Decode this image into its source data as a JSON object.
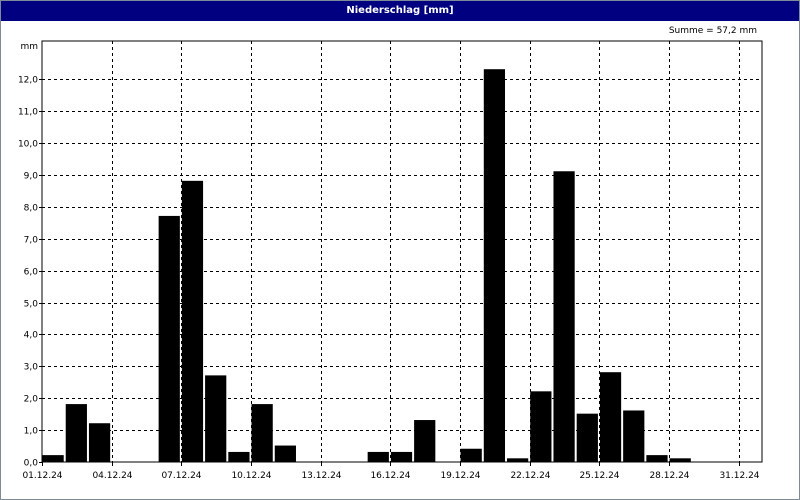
{
  "window_title": "Niederschlag [mm]",
  "summary": "Summe = 57,2 mm",
  "chart_data": {
    "type": "bar",
    "title": "Niederschlag [mm]",
    "ylabel": "mm",
    "xlabel": "",
    "ylim": [
      0,
      13.2
    ],
    "yticks": [
      "0,0",
      "1,0",
      "2,0",
      "3,0",
      "4,0",
      "5,0",
      "6,0",
      "7,0",
      "8,0",
      "9,0",
      "10,0",
      "11,0",
      "12,0"
    ],
    "xticks": [
      "01.12.24",
      "04.12.24",
      "07.12.24",
      "10.12.24",
      "13.12.24",
      "16.12.24",
      "19.12.24",
      "22.12.24",
      "25.12.24",
      "28.12.24",
      "31.12.24"
    ],
    "grid": true,
    "bar_color": "#000000",
    "categories": [
      "01.12.24",
      "02.12.24",
      "03.12.24",
      "04.12.24",
      "05.12.24",
      "06.12.24",
      "07.12.24",
      "08.12.24",
      "09.12.24",
      "10.12.24",
      "11.12.24",
      "12.12.24",
      "13.12.24",
      "14.12.24",
      "15.12.24",
      "16.12.24",
      "17.12.24",
      "18.12.24",
      "19.12.24",
      "20.12.24",
      "21.12.24",
      "22.12.24",
      "23.12.24",
      "24.12.24",
      "25.12.24",
      "26.12.24",
      "27.12.24",
      "28.12.24",
      "29.12.24",
      "30.12.24",
      "31.12.24"
    ],
    "values": [
      0.2,
      1.8,
      1.2,
      0,
      0,
      7.7,
      8.8,
      2.7,
      0.3,
      1.8,
      0.5,
      0,
      0,
      0,
      0.3,
      0.3,
      1.3,
      0,
      0.4,
      12.3,
      0.1,
      2.2,
      9.1,
      1.5,
      2.8,
      1.6,
      0.2,
      0.1,
      0,
      0,
      0
    ]
  }
}
